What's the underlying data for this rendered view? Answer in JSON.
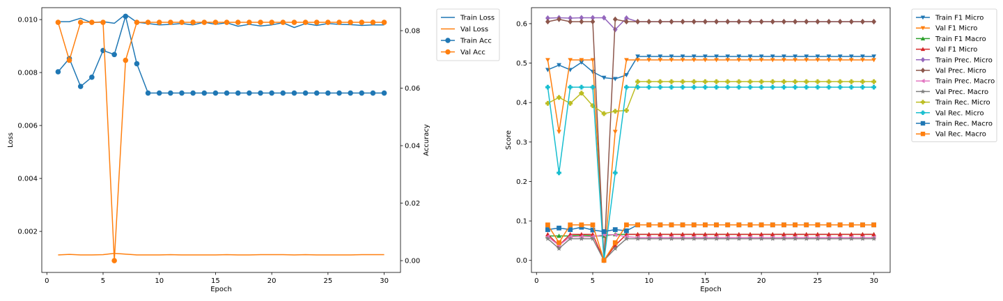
{
  "chart_data": [
    {
      "type": "line",
      "xlabel": "Epoch",
      "ylabel_left": "Loss",
      "ylabel_right": "Accuracy",
      "xlim": [
        -0.45,
        31.45
      ],
      "ylim_left": [
        0.00045,
        0.01045
      ],
      "ylim_right": [
        -0.0041,
        0.088
      ],
      "xticks": [
        0,
        5,
        10,
        15,
        20,
        25,
        30
      ],
      "yticks_left": [
        0.002,
        0.004,
        0.006,
        0.008,
        0.01
      ],
      "yticks_right": [
        0.0,
        0.02,
        0.04,
        0.06,
        0.08
      ],
      "ytick_labels_left": [
        "0.002",
        "0.004",
        "0.006",
        "0.008",
        "0.010"
      ],
      "ytick_labels_right": [
        "0.00",
        "0.02",
        "0.04",
        "0.06",
        "0.08"
      ],
      "legend_position": "outside-right",
      "x": [
        1,
        2,
        3,
        4,
        5,
        6,
        7,
        8,
        9,
        10,
        11,
        12,
        13,
        14,
        15,
        16,
        17,
        18,
        19,
        20,
        21,
        22,
        23,
        24,
        25,
        26,
        27,
        28,
        29,
        30
      ],
      "series": [
        {
          "name": "Train Loss",
          "axis": "left",
          "color": "#1f77b4",
          "marker": "none",
          "values": [
            0.00992,
            0.00992,
            0.01005,
            0.00988,
            0.00992,
            0.00986,
            0.0102,
            0.0099,
            0.00985,
            0.0098,
            0.00982,
            0.00985,
            0.0098,
            0.0099,
            0.00982,
            0.00988,
            0.00975,
            0.00982,
            0.00976,
            0.0098,
            0.00988,
            0.0097,
            0.00985,
            0.00978,
            0.00985,
            0.00982,
            0.00981,
            0.00978,
            0.0098,
            0.0098
          ]
        },
        {
          "name": "Val Loss",
          "axis": "left",
          "color": "#ff7f0e",
          "marker": "none",
          "values": [
            0.00111,
            0.00113,
            0.00111,
            0.00111,
            0.00112,
            0.00117,
            0.00114,
            0.00111,
            0.00111,
            0.00111,
            0.00112,
            0.00111,
            0.00111,
            0.00111,
            0.00111,
            0.00112,
            0.00111,
            0.00111,
            0.00112,
            0.00112,
            0.00112,
            0.00111,
            0.00112,
            0.00111,
            0.00111,
            0.00111,
            0.00111,
            0.00112,
            0.00112,
            0.00112
          ]
        },
        {
          "name": "Train Acc",
          "axis": "right",
          "color": "#1f77b4",
          "marker": "circle",
          "values": [
            0.0657,
            0.0703,
            0.0606,
            0.0638,
            0.0731,
            0.0717,
            0.085,
            0.0685,
            0.0583,
            0.0583,
            0.0583,
            0.0583,
            0.0583,
            0.0583,
            0.0583,
            0.0583,
            0.0583,
            0.0583,
            0.0583,
            0.0583,
            0.0583,
            0.0583,
            0.0583,
            0.0583,
            0.0583,
            0.0583,
            0.0583,
            0.0583,
            0.0583,
            0.0583
          ]
        },
        {
          "name": "Val Acc",
          "axis": "right",
          "color": "#ff7f0e",
          "marker": "circle",
          "values": [
            0.0829,
            0.0697,
            0.0829,
            0.0829,
            0.0829,
            0.0,
            0.0697,
            0.0829,
            0.0829,
            0.0829,
            0.0829,
            0.0829,
            0.0829,
            0.0829,
            0.0829,
            0.0829,
            0.0829,
            0.0829,
            0.0829,
            0.0829,
            0.0829,
            0.0829,
            0.0829,
            0.0829,
            0.0829,
            0.0829,
            0.0829,
            0.0829,
            0.0829,
            0.0829
          ]
        }
      ]
    },
    {
      "type": "line",
      "xlabel": "Epoch",
      "ylabel": "Score",
      "xlim": [
        -0.45,
        31.45
      ],
      "ylim": [
        -0.0305,
        0.6405
      ],
      "xticks": [
        0,
        5,
        10,
        15,
        20,
        25,
        30
      ],
      "yticks": [
        0.0,
        0.1,
        0.2,
        0.3,
        0.4,
        0.5,
        0.6
      ],
      "ytick_labels": [
        "0.0",
        "0.1",
        "0.2",
        "0.3",
        "0.4",
        "0.5",
        "0.6"
      ],
      "legend_position": "outside-right",
      "x": [
        1,
        2,
        3,
        4,
        5,
        6,
        7,
        8,
        9,
        10,
        11,
        12,
        13,
        14,
        15,
        16,
        17,
        18,
        19,
        20,
        21,
        22,
        23,
        24,
        25,
        26,
        27,
        28,
        29,
        30
      ],
      "series": [
        {
          "name": "Train F1 Micro",
          "color": "#1f77b4",
          "marker": "triangle-down",
          "values": [
            0.483,
            0.495,
            0.483,
            0.502,
            0.478,
            0.463,
            0.46,
            0.47,
            0.517,
            0.517,
            0.517,
            0.517,
            0.517,
            0.517,
            0.517,
            0.517,
            0.517,
            0.517,
            0.517,
            0.517,
            0.517,
            0.517,
            0.517,
            0.517,
            0.517,
            0.517,
            0.517,
            0.517,
            0.517,
            0.517
          ]
        },
        {
          "name": "Val F1 Micro",
          "color": "#ff7f0e",
          "marker": "triangle-down",
          "values": [
            0.508,
            0.326,
            0.508,
            0.508,
            0.508,
            0.0,
            0.326,
            0.508,
            0.508,
            0.508,
            0.508,
            0.508,
            0.508,
            0.508,
            0.508,
            0.508,
            0.508,
            0.508,
            0.508,
            0.508,
            0.508,
            0.508,
            0.508,
            0.508,
            0.508,
            0.508,
            0.508,
            0.508,
            0.508,
            0.508
          ]
        },
        {
          "name": "Train F1 Macro",
          "color": "#2ca02c",
          "marker": "triangle-up",
          "values": [
            0.062,
            0.062,
            0.062,
            0.064,
            0.062,
            0.062,
            0.066,
            0.066,
            0.066,
            0.066,
            0.066,
            0.066,
            0.066,
            0.066,
            0.066,
            0.066,
            0.066,
            0.066,
            0.066,
            0.066,
            0.066,
            0.066,
            0.066,
            0.066,
            0.066,
            0.066,
            0.066,
            0.066,
            0.066,
            0.066
          ]
        },
        {
          "name": "Val F1 Micro",
          "color": "#d62728",
          "marker": "triangle-up",
          "values": [
            0.066,
            0.038,
            0.066,
            0.066,
            0.066,
            0.0,
            0.038,
            0.066,
            0.066,
            0.066,
            0.066,
            0.066,
            0.066,
            0.066,
            0.066,
            0.066,
            0.066,
            0.066,
            0.066,
            0.066,
            0.066,
            0.066,
            0.066,
            0.066,
            0.066,
            0.066,
            0.066,
            0.066,
            0.066,
            0.066
          ]
        },
        {
          "name": "Train Prec. Micro",
          "color": "#9467bd",
          "marker": "diamond",
          "values": [
            0.614,
            0.615,
            0.614,
            0.615,
            0.615,
            0.615,
            0.585,
            0.614,
            0.605,
            0.605,
            0.605,
            0.605,
            0.605,
            0.605,
            0.605,
            0.605,
            0.605,
            0.605,
            0.605,
            0.605,
            0.605,
            0.605,
            0.605,
            0.605,
            0.605,
            0.605,
            0.605,
            0.605,
            0.605,
            0.605
          ]
        },
        {
          "name": "Val Prec. Micro",
          "color": "#8c564b",
          "marker": "diamond",
          "values": [
            0.605,
            0.611,
            0.605,
            0.605,
            0.605,
            0.0,
            0.611,
            0.605,
            0.605,
            0.605,
            0.605,
            0.605,
            0.605,
            0.605,
            0.605,
            0.605,
            0.605,
            0.605,
            0.605,
            0.605,
            0.605,
            0.605,
            0.605,
            0.605,
            0.605,
            0.605,
            0.605,
            0.605,
            0.605,
            0.605
          ]
        },
        {
          "name": "Train Prec. Macro",
          "color": "#e377c2",
          "marker": "triangle-left",
          "values": [
            0.06,
            0.038,
            0.06,
            0.06,
            0.06,
            0.065,
            0.065,
            0.06,
            0.058,
            0.058,
            0.058,
            0.058,
            0.058,
            0.058,
            0.058,
            0.058,
            0.058,
            0.058,
            0.058,
            0.058,
            0.058,
            0.058,
            0.058,
            0.058,
            0.058,
            0.058,
            0.058,
            0.058,
            0.058,
            0.058
          ]
        },
        {
          "name": "Val Prec. Macro",
          "color": "#7f7f7f",
          "marker": "star",
          "values": [
            0.055,
            0.03,
            0.055,
            0.055,
            0.055,
            0.0,
            0.03,
            0.055,
            0.055,
            0.055,
            0.055,
            0.055,
            0.055,
            0.055,
            0.055,
            0.055,
            0.055,
            0.055,
            0.055,
            0.055,
            0.055,
            0.055,
            0.055,
            0.055,
            0.055,
            0.055,
            0.055,
            0.055,
            0.055,
            0.055
          ]
        },
        {
          "name": "Train Rec. Micro",
          "color": "#bcbd22",
          "marker": "plus",
          "values": [
            0.398,
            0.413,
            0.398,
            0.424,
            0.392,
            0.372,
            0.378,
            0.38,
            0.453,
            0.453,
            0.453,
            0.453,
            0.453,
            0.453,
            0.453,
            0.453,
            0.453,
            0.453,
            0.453,
            0.453,
            0.453,
            0.453,
            0.453,
            0.453,
            0.453,
            0.453,
            0.453,
            0.453,
            0.453,
            0.453
          ]
        },
        {
          "name": "Val Rec. Micro",
          "color": "#17becf",
          "marker": "plus",
          "values": [
            0.439,
            0.222,
            0.439,
            0.439,
            0.439,
            0.0,
            0.222,
            0.439,
            0.439,
            0.439,
            0.439,
            0.439,
            0.439,
            0.439,
            0.439,
            0.439,
            0.439,
            0.439,
            0.439,
            0.439,
            0.439,
            0.439,
            0.439,
            0.439,
            0.439,
            0.439,
            0.439,
            0.439,
            0.439,
            0.439
          ]
        },
        {
          "name": "Train Rec. Macro",
          "color": "#1f77b4",
          "marker": "square",
          "values": [
            0.078,
            0.082,
            0.078,
            0.084,
            0.077,
            0.073,
            0.078,
            0.075,
            0.09,
            0.09,
            0.09,
            0.09,
            0.09,
            0.09,
            0.09,
            0.09,
            0.09,
            0.09,
            0.09,
            0.09,
            0.09,
            0.09,
            0.09,
            0.09,
            0.09,
            0.09,
            0.09,
            0.09,
            0.09,
            0.09
          ]
        },
        {
          "name": "Val Rec. Macro",
          "color": "#ff7f0e",
          "marker": "square",
          "values": [
            0.09,
            0.045,
            0.09,
            0.09,
            0.09,
            0.0,
            0.045,
            0.09,
            0.09,
            0.09,
            0.09,
            0.09,
            0.09,
            0.09,
            0.09,
            0.09,
            0.09,
            0.09,
            0.09,
            0.09,
            0.09,
            0.09,
            0.09,
            0.09,
            0.09,
            0.09,
            0.09,
            0.09,
            0.09,
            0.09
          ]
        }
      ]
    }
  ]
}
